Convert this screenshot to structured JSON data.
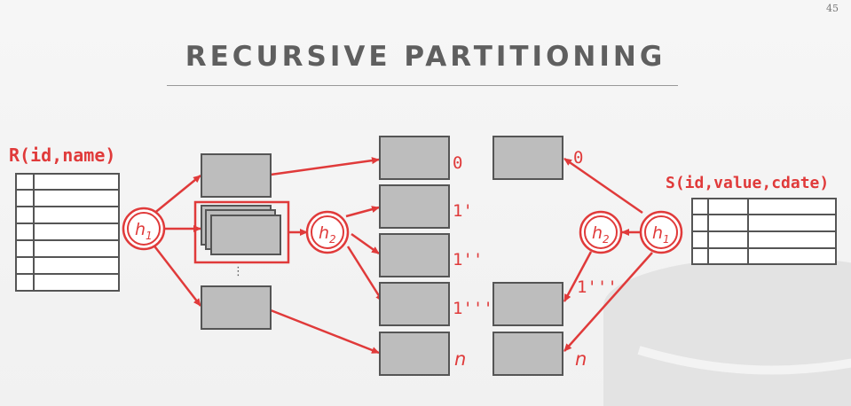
{
  "slide": {
    "page_number": "45",
    "title": "RECURSIVE PARTITIONING"
  },
  "tables": {
    "r_label": "R(id,name)",
    "s_label": "S(id,value,cdate)"
  },
  "hash_functions": {
    "h1": "h",
    "h1_sub": "1",
    "h2": "h",
    "h2_sub": "2"
  },
  "partitions": {
    "label_0": "0",
    "label_1p": "1'",
    "label_1pp": "1''",
    "label_1ppp": "1'''",
    "label_n": "n",
    "ellipsis": "⋮"
  },
  "colors": {
    "accent": "#e03a3a",
    "box_fill": "#bdbdbd",
    "box_stroke": "#555555",
    "title": "#5f5f5f"
  }
}
